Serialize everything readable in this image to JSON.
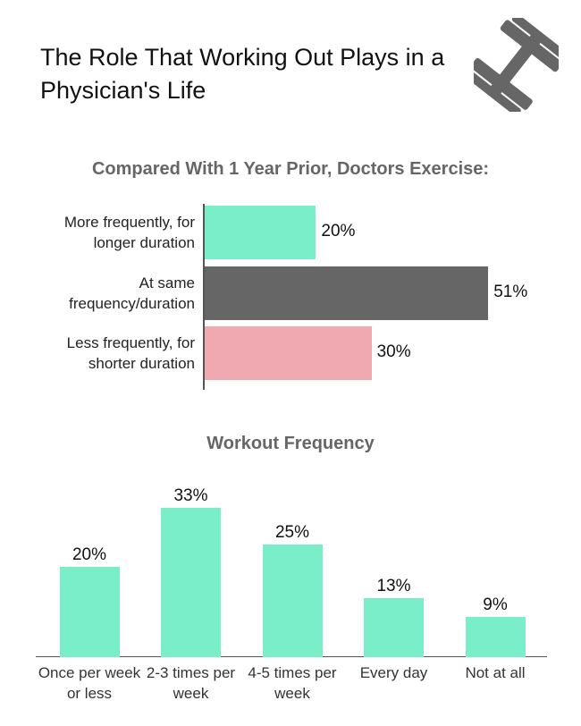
{
  "title": "The Role That Working Out Plays in a Physician's Life",
  "chart_data": [
    {
      "type": "bar",
      "orientation": "horizontal",
      "title": "Compared With 1 Year Prior, Doctors Exercise:",
      "categories": [
        "More frequently, for longer duration",
        "At same frequency/duration",
        "Less frequently, for shorter duration"
      ],
      "values": [
        20,
        51,
        30
      ],
      "value_labels": [
        "20%",
        "51%",
        "30%"
      ],
      "colors": [
        "#7aeec8",
        "#666666",
        "#f0a9b0"
      ]
    },
    {
      "type": "bar",
      "orientation": "vertical",
      "title": "Workout Frequency",
      "categories": [
        "Once per week or less",
        "2-3 times per week",
        "4-5 times per week",
        "Every day",
        "Not at all"
      ],
      "values": [
        20,
        33,
        25,
        13,
        9
      ],
      "value_labels": [
        "20%",
        "33%",
        "25%",
        "13%",
        "9%"
      ],
      "color": "#7aeec8"
    }
  ]
}
